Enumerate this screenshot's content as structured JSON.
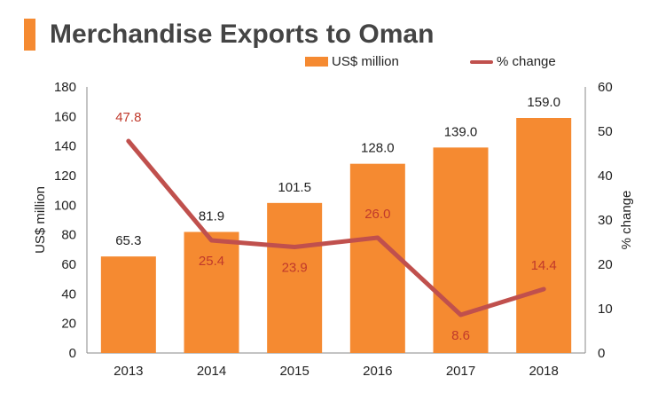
{
  "chart_data": {
    "type": "bar",
    "title": "Merchandise Exports to Oman",
    "categories": [
      "2013",
      "2014",
      "2015",
      "2016",
      "2017",
      "2018"
    ],
    "series": [
      {
        "name": "US$ million",
        "type": "bar",
        "axis": "left",
        "values": [
          65.3,
          81.9,
          101.5,
          128.0,
          139.0,
          159.0
        ],
        "labels": [
          "65.3",
          "81.9",
          "101.5",
          "128.0",
          "139.0",
          "159.0"
        ]
      },
      {
        "name": "% change",
        "type": "line",
        "axis": "right",
        "values": [
          47.8,
          25.4,
          23.9,
          26.0,
          8.6,
          14.4
        ],
        "labels": [
          "47.8",
          "25.4",
          "23.9",
          "26.0",
          "8.6",
          "14.4"
        ]
      }
    ],
    "ylabel": "US$ million",
    "y2label": "% change",
    "ylim": [
      0,
      180
    ],
    "y2lim": [
      0,
      60
    ],
    "yticks": [
      "0",
      "20",
      "40",
      "60",
      "80",
      "100",
      "120",
      "140",
      "160",
      "180"
    ],
    "y2ticks": [
      "0",
      "10",
      "20",
      "30",
      "40",
      "50",
      "60"
    ],
    "legend": "top-right",
    "grid": false
  },
  "colors": {
    "bar": "#f58a31",
    "line": "#c0504d",
    "line_label": "#c0392b",
    "text": "#222222",
    "title": "#444444",
    "accent": "#f58a31"
  }
}
